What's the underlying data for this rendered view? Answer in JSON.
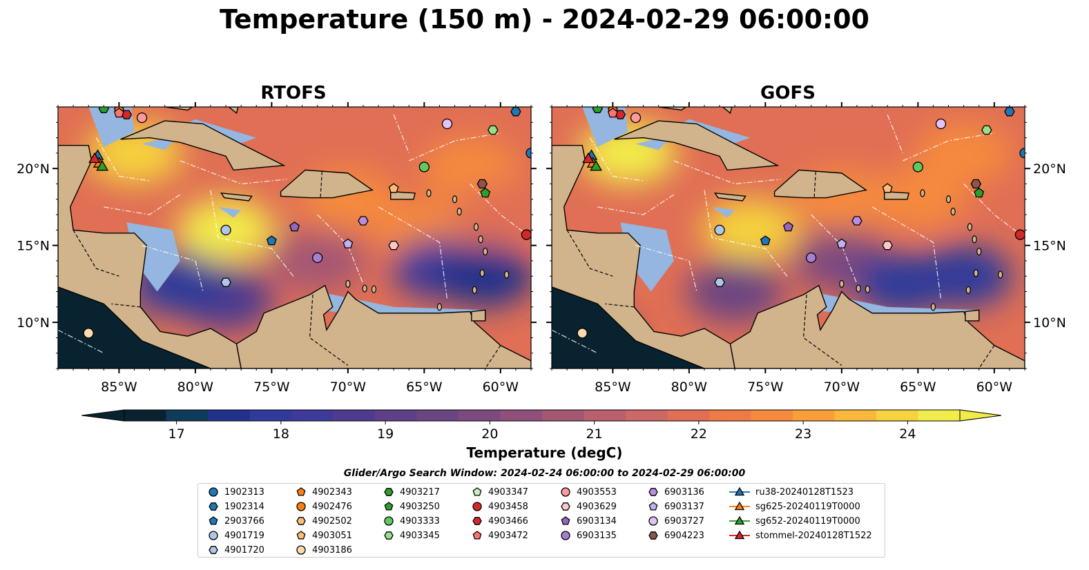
{
  "title": "Temperature (150 m) - 2024-02-29 06:00:00",
  "panels": [
    {
      "title": "RTOFS",
      "variant": "rtofs"
    },
    {
      "title": "GOFS",
      "variant": "gofs"
    }
  ],
  "axes": {
    "x_ticks": [
      "85°W",
      "80°W",
      "75°W",
      "70°W",
      "65°W",
      "60°W"
    ],
    "x_values": [
      -85,
      -80,
      -75,
      -70,
      -65,
      -60
    ],
    "y_ticks": [
      "20°N",
      "15°N",
      "10°N"
    ],
    "y_values": [
      20,
      15,
      10
    ],
    "lon_range": [
      -89,
      -58
    ],
    "lat_range": [
      7,
      24
    ]
  },
  "colorbar": {
    "label": "Temperature (degC)",
    "ticks": [
      "17",
      "18",
      "19",
      "20",
      "21",
      "22",
      "23",
      "24"
    ],
    "tick_values": [
      17,
      18,
      19,
      20,
      21,
      22,
      23,
      24
    ],
    "range": [
      16.5,
      24.5
    ],
    "colors": [
      "#082230",
      "#0f3b5a",
      "#21318a",
      "#2f3a9a",
      "#3d3a9a",
      "#4e3a8e",
      "#5e3f88",
      "#6b4582",
      "#7c4a7f",
      "#8e4f7a",
      "#a45673",
      "#b8606c",
      "#cc6866",
      "#e06f55",
      "#ee7b46",
      "#f58a3c",
      "#f8a037",
      "#f9b83a",
      "#f5d23e",
      "#f2ec4a"
    ]
  },
  "legend": {
    "title": "Glider/Argo Search Window: 2024-02-24 06:00:00 to 2024-02-29 06:00:00",
    "items": [
      {
        "label": "1902313",
        "marker": "circle",
        "color": "#1f77b4"
      },
      {
        "label": "1902314",
        "marker": "hexagon",
        "color": "#1f77b4"
      },
      {
        "label": "2903766",
        "marker": "pentagon",
        "color": "#1f77b4"
      },
      {
        "label": "4901719",
        "marker": "circle",
        "color": "#aec7e8"
      },
      {
        "label": "4901720",
        "marker": "hexagon",
        "color": "#aec7e8"
      },
      {
        "label": "4902343",
        "marker": "pentagon",
        "color": "#ff7f0e"
      },
      {
        "label": "4902476",
        "marker": "circle",
        "color": "#ff7f0e"
      },
      {
        "label": "4902502",
        "marker": "hexagon",
        "color": "#ffbb78"
      },
      {
        "label": "4903051",
        "marker": "pentagon",
        "color": "#ffbb78"
      },
      {
        "label": "4903186",
        "marker": "circle",
        "color": "#ffdab0"
      },
      {
        "label": "4903217",
        "marker": "hexagon",
        "color": "#2ca02c"
      },
      {
        "label": "4903250",
        "marker": "pentagon",
        "color": "#2ca02c"
      },
      {
        "label": "4903333",
        "marker": "circle",
        "color": "#61c861"
      },
      {
        "label": "4903345",
        "marker": "hexagon",
        "color": "#98df8a"
      },
      {
        "label": "4903347",
        "marker": "pentagon",
        "color": "#c7f0c0"
      },
      {
        "label": "4903458",
        "marker": "circle",
        "color": "#d62728"
      },
      {
        "label": "4903466",
        "marker": "hexagon",
        "color": "#d62728"
      },
      {
        "label": "4903472",
        "marker": "pentagon",
        "color": "#ff7470"
      },
      {
        "label": "4903553",
        "marker": "circle",
        "color": "#ff9896"
      },
      {
        "label": "4903629",
        "marker": "hexagon",
        "color": "#ffc8c6"
      },
      {
        "label": "6903134",
        "marker": "pentagon",
        "color": "#9467bd"
      },
      {
        "label": "6903135",
        "marker": "circle",
        "color": "#a680cf"
      },
      {
        "label": "6903136",
        "marker": "hexagon",
        "color": "#b98ee0"
      },
      {
        "label": "6903137",
        "marker": "pentagon",
        "color": "#c5b0f0"
      },
      {
        "label": "6903727",
        "marker": "circle",
        "color": "#e3c5f5"
      },
      {
        "label": "6904223",
        "marker": "hexagon",
        "color": "#8c564b"
      },
      {
        "label": "ru38-20240128T1523",
        "marker": "triangle",
        "color": "#1f77b4"
      },
      {
        "label": "sg625-20240119T0000",
        "marker": "triangle",
        "color": "#ff7f0e"
      },
      {
        "label": "sg652-20240119T0000",
        "marker": "triangle",
        "color": "#2ca02c"
      },
      {
        "label": "stommel-20240128T1522",
        "marker": "triangle",
        "color": "#d62728"
      }
    ]
  },
  "chart_data": {
    "type": "heatmap",
    "title": "Temperature (150 m) - 2024-02-29 06:00:00",
    "xlim": [
      -89,
      -58
    ],
    "ylim": [
      7,
      24
    ],
    "value_range": [
      16.5,
      24.5
    ],
    "units": "degC",
    "series": [
      {
        "name": "RTOFS",
        "points": [
          {
            "lon": -78,
            "lat": 16,
            "temp": 24.2
          },
          {
            "lon": -84,
            "lat": 21,
            "temp": 24.0
          },
          {
            "lon": -70,
            "lat": 18,
            "temp": 22.8
          },
          {
            "lon": -65,
            "lat": 16,
            "temp": 22.5
          },
          {
            "lon": -62,
            "lat": 20,
            "temp": 22.6
          },
          {
            "lon": -60,
            "lat": 17,
            "temp": 22.0
          },
          {
            "lon": -72,
            "lat": 14,
            "temp": 20.5
          },
          {
            "lon": -78,
            "lat": 11.5,
            "temp": 18.5
          },
          {
            "lon": -81,
            "lat": 12.5,
            "temp": 18.0
          },
          {
            "lon": -64,
            "lat": 13.5,
            "temp": 18.2
          },
          {
            "lon": -61,
            "lat": 13,
            "temp": 17.3
          },
          {
            "lon": -87,
            "lat": 9,
            "temp": 17.0
          }
        ]
      },
      {
        "name": "GOFS",
        "points": [
          {
            "lon": -76,
            "lat": 16,
            "temp": 24.0
          },
          {
            "lon": -84,
            "lat": 21,
            "temp": 24.2
          },
          {
            "lon": -70,
            "lat": 18,
            "temp": 22.5
          },
          {
            "lon": -65,
            "lat": 18,
            "temp": 22.7
          },
          {
            "lon": -62,
            "lat": 21,
            "temp": 22.8
          },
          {
            "lon": -70,
            "lat": 14,
            "temp": 20.0
          },
          {
            "lon": -77,
            "lat": 12,
            "temp": 19.5
          },
          {
            "lon": -66,
            "lat": 12.5,
            "temp": 18.0
          },
          {
            "lon": -62,
            "lat": 13,
            "temp": 17.8
          },
          {
            "lon": -87,
            "lat": 9,
            "temp": 17.0
          }
        ]
      }
    ],
    "markers": [
      {
        "id": "1902313",
        "lon": -58,
        "lat": 21
      },
      {
        "id": "1902314",
        "lon": -59,
        "lat": 23.7
      },
      {
        "id": "2903766",
        "lon": -75,
        "lat": 15.3
      },
      {
        "id": "4901719",
        "lon": -78,
        "lat": 16
      },
      {
        "id": "4901720",
        "lon": -78,
        "lat": 12.6
      },
      {
        "id": "4902343",
        "lon": -85,
        "lat": 23.8
      },
      {
        "id": "4903051",
        "lon": -67,
        "lat": 18.7
      },
      {
        "id": "4903186",
        "lon": -87,
        "lat": 9.3
      },
      {
        "id": "4903217",
        "lon": -86,
        "lat": 23.9
      },
      {
        "id": "4903250",
        "lon": -61,
        "lat": 18.4
      },
      {
        "id": "4903333",
        "lon": -65,
        "lat": 20.1
      },
      {
        "id": "4903345",
        "lon": -60.5,
        "lat": 22.5
      },
      {
        "id": "4903458",
        "lon": -58.3,
        "lat": 15.7
      },
      {
        "id": "4903466",
        "lon": -84.5,
        "lat": 23.5
      },
      {
        "id": "4903472",
        "lon": -85,
        "lat": 23.6
      },
      {
        "id": "4903553",
        "lon": -83.5,
        "lat": 23.3
      },
      {
        "id": "4903629",
        "lon": -67,
        "lat": 15
      },
      {
        "id": "6903134",
        "lon": -73.5,
        "lat": 16.2
      },
      {
        "id": "6903135",
        "lon": -72,
        "lat": 14.2
      },
      {
        "id": "6903136",
        "lon": -69,
        "lat": 16.6
      },
      {
        "id": "6903137",
        "lon": -70,
        "lat": 15.1
      },
      {
        "id": "6903727",
        "lon": -63.5,
        "lat": 22.9
      },
      {
        "id": "6904223",
        "lon": -61.2,
        "lat": 19
      },
      {
        "id": "ru38-20240128T1523",
        "lon": -86.4,
        "lat": 20.7
      },
      {
        "id": "sg625-20240119T0000",
        "lon": -86.3,
        "lat": 20.2
      },
      {
        "id": "sg652-20240119T0000",
        "lon": -86.1,
        "lat": 20
      },
      {
        "id": "stommel-20240128T1522",
        "lon": -86.6,
        "lat": 20.5
      }
    ]
  }
}
